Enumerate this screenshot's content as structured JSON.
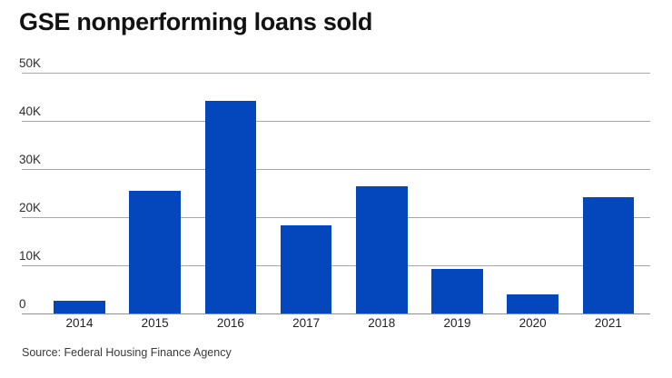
{
  "header": {
    "title": "GSE nonperforming loans sold"
  },
  "footer": {
    "source": "Source: Federal Housing Finance Agency"
  },
  "colors": {
    "bar": "#0446bb",
    "gridline": "#a8a8a8",
    "baseline": "#8f8f8f",
    "background": "#ffffff",
    "title_text": "#121212",
    "axis_text": "#2d2d2d"
  },
  "chart_data": {
    "type": "bar",
    "title": "GSE nonperforming loans sold",
    "categories": [
      "2014",
      "2015",
      "2016",
      "2017",
      "2018",
      "2019",
      "2020",
      "2021"
    ],
    "values": [
      2600,
      25500,
      44200,
      18300,
      26500,
      9200,
      4000,
      24100
    ],
    "xlabel": "",
    "ylabel": "",
    "unit": "loans",
    "ylim": [
      0,
      50000
    ],
    "yticks": [
      {
        "label": "0",
        "value": 0
      },
      {
        "label": "10K",
        "value": 10000
      },
      {
        "label": "20K",
        "value": 20000
      },
      {
        "label": "30K",
        "value": 30000
      },
      {
        "label": "40K",
        "value": 40000
      },
      {
        "label": "50K",
        "value": 50000
      }
    ],
    "grid": true,
    "legend_position": "none",
    "source": "Source: Federal Housing Finance Agency"
  }
}
